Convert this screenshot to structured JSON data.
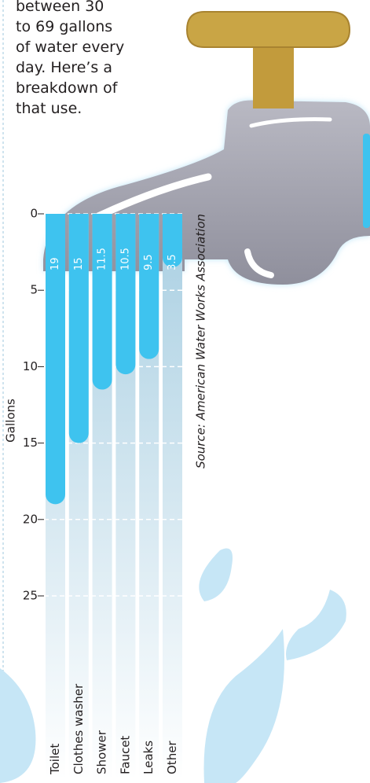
{
  "intro": [
    "between 30",
    "to 69 gallons",
    "of water every",
    "day. Here’s a",
    "breakdown of",
    "that use."
  ],
  "chart_data": {
    "type": "bar",
    "orientation": "downward",
    "ylabel": "Gallons",
    "source": "Source: American Water Works Association",
    "categories": [
      "Toilet",
      "Clothes washer",
      "Shower",
      "Faucet",
      "Leaks",
      "Other"
    ],
    "values": [
      19,
      15,
      11.5,
      10.5,
      9.5,
      3.5
    ],
    "color": "#3ec3ef",
    "ylim": [
      0,
      25
    ],
    "yticks": [
      0,
      5,
      10,
      15,
      20,
      25
    ],
    "grid": true
  }
}
